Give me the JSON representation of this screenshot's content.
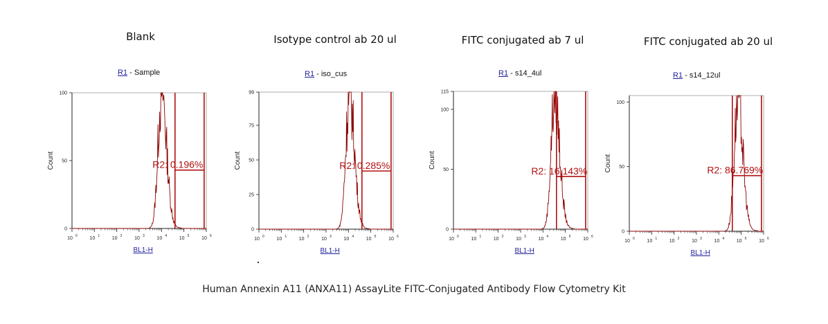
{
  "footer": "Human Annexin A11 (ANXA11) AssayLite FITC-Conjugated Antibody Flow Cytometry Kit",
  "colors": {
    "trace": "#8b0000",
    "gate": "#b01010",
    "gate_text": "#b01010",
    "axis": "#222222",
    "link": "#1f1f9c"
  },
  "chart_data": [
    {
      "type": "area",
      "title": "Blank",
      "region_link": "R1",
      "region_sample": " - Sample",
      "xlabel": "BL1-H",
      "ylabel": "Count",
      "x_scale": "log",
      "xlim": [
        1,
        1000000
      ],
      "ylim": [
        0,
        100
      ],
      "yticks": [
        "0",
        "50",
        "100"
      ],
      "xtick_labels": [
        "10",
        "10",
        "10",
        "10",
        "10",
        "10",
        "10"
      ],
      "peak": {
        "center": 10000,
        "height": 100
      },
      "gate": {
        "name": "R2",
        "label": "R2: 0.196%",
        "percent": 0.196,
        "from": 40000,
        "to": 800000,
        "level": 43
      }
    },
    {
      "type": "area",
      "title": "Isotype control ab 20 ul",
      "region_link": "R1",
      "region_sample": " - iso_cus",
      "xlabel": "BL1-H",
      "ylabel": "Count",
      "x_scale": "log",
      "xlim": [
        1,
        1000000
      ],
      "ylim": [
        0,
        99
      ],
      "yticks": [
        "0",
        "25",
        "50",
        "75",
        "99"
      ],
      "xtick_labels": [
        "10",
        "10",
        "10",
        "10",
        "10",
        "10",
        "10"
      ],
      "peak": {
        "center": 11000,
        "height": 97
      },
      "gate": {
        "name": "R2",
        "label": "R2: 0.285%",
        "percent": 0.285,
        "from": 40000,
        "to": 800000,
        "level": 42
      }
    },
    {
      "type": "area",
      "title": "FITC conjugated ab 7 ul",
      "region_link": "R1",
      "region_sample": " - s14_4ul",
      "xlabel": "BL1-H",
      "ylabel": "Count",
      "x_scale": "log",
      "xlim": [
        1,
        1000000
      ],
      "ylim": [
        0,
        115
      ],
      "yticks": [
        "0",
        "50",
        "100",
        "115"
      ],
      "xtick_labels": [
        "10",
        "10",
        "10",
        "10",
        "10",
        "10",
        "10"
      ],
      "peak": {
        "center": 33000,
        "height": 112
      },
      "gate": {
        "name": "R2",
        "label": "R2: 16.143%",
        "percent": 16.143,
        "from": 40000,
        "to": 800000,
        "level": 44
      }
    },
    {
      "type": "area",
      "title": "FITC conjugated ab 20 ul",
      "region_link": "R1",
      "region_sample": " - s14_12ul",
      "xlabel": "BL1-H",
      "ylabel": "Count",
      "x_scale": "log",
      "xlim": [
        1,
        1000000
      ],
      "ylim": [
        0,
        105
      ],
      "yticks": [
        "0",
        "50",
        "100"
      ],
      "xtick_labels": [
        "10",
        "10",
        "10",
        "10",
        "10",
        "10",
        "10"
      ],
      "peak": {
        "center": 70000,
        "height": 103
      },
      "gate": {
        "name": "R2",
        "label": "R2: 86.769%",
        "percent": 86.769,
        "from": 40000,
        "to": 800000,
        "level": 43
      }
    }
  ]
}
